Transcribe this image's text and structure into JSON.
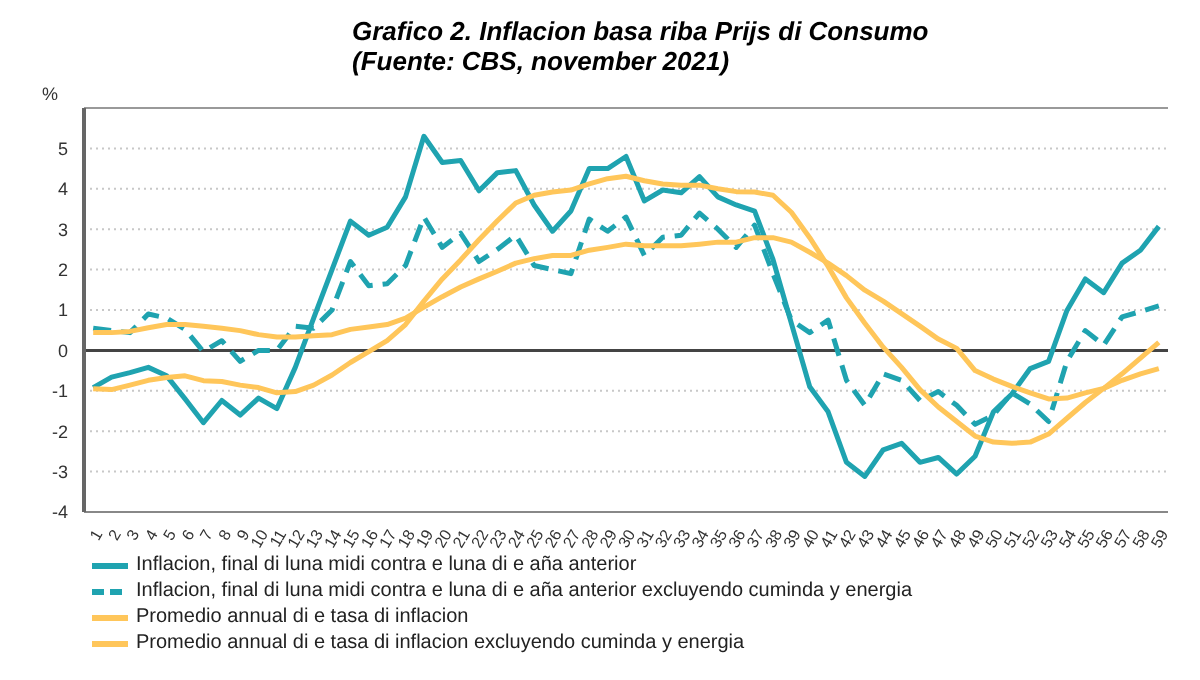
{
  "chart_data": {
    "type": "line",
    "title": "Grafico 2. Inflacion basa riba Prijs di Consumo\n(Fuente: CBS, november 2021)",
    "ylabel": "%",
    "categories": [
      "1",
      "2",
      "3",
      "4",
      "5",
      "6",
      "7",
      "8",
      "9",
      "10",
      "11",
      "12",
      "13",
      "14",
      "15",
      "16",
      "17",
      "18",
      "19",
      "20",
      "21",
      "22",
      "23",
      "24",
      "25",
      "26",
      "27",
      "28",
      "29",
      "30",
      "31",
      "32",
      "33",
      "34",
      "35",
      "36",
      "37",
      "38",
      "39",
      "40",
      "41",
      "42",
      "43",
      "44",
      "45",
      "46",
      "47",
      "48",
      "49",
      "50",
      "51",
      "52",
      "53",
      "54",
      "55",
      "56",
      "57",
      "58",
      "59"
    ],
    "series": [
      {
        "name": "Inflacion, final di luna midi contra e luna di e aña anterior",
        "color": "#1fa3b0",
        "line_style": "solid",
        "values": [
          -0.92,
          -0.66,
          -0.55,
          -0.42,
          -0.63,
          -1.2,
          -1.79,
          -1.24,
          -1.6,
          -1.18,
          -1.44,
          -0.42,
          0.8,
          2.0,
          3.2,
          2.85,
          3.05,
          3.8,
          5.3,
          4.65,
          4.7,
          3.95,
          4.4,
          4.45,
          3.6,
          2.95,
          3.45,
          4.5,
          4.5,
          4.8,
          3.7,
          3.97,
          3.9,
          4.3,
          3.8,
          3.6,
          3.45,
          2.25,
          0.67,
          -0.9,
          -1.52,
          -2.77,
          -3.12,
          -2.46,
          -2.3,
          -2.77,
          -2.65,
          -3.06,
          -2.62,
          -1.52,
          -1.08,
          -0.45,
          -0.27,
          0.99,
          1.77,
          1.43,
          2.16,
          2.48,
          3.07
        ]
      },
      {
        "name": "Inflacion, final di luna midi contra e luna di e aña anterior excluyendo cuminda y energia",
        "color": "#1fa3b0",
        "line_style": "dashed",
        "values": [
          0.55,
          0.49,
          0.44,
          0.9,
          0.8,
          0.52,
          -0.03,
          0.24,
          -0.27,
          0,
          0,
          0.6,
          0.55,
          1.0,
          2.2,
          1.6,
          1.65,
          2.1,
          3.3,
          2.55,
          2.9,
          2.2,
          2.5,
          2.85,
          2.1,
          2.0,
          1.9,
          3.25,
          2.95,
          3.3,
          2.35,
          2.8,
          2.85,
          3.4,
          3.0,
          2.55,
          3.1,
          1.9,
          0.75,
          0.44,
          0.75,
          -0.74,
          -1.36,
          -0.58,
          -0.74,
          -1.24,
          -1.02,
          -1.36,
          -1.83,
          -1.6,
          -1.05,
          -1.33,
          -1.76,
          -0.27,
          0.49,
          0.13,
          0.83,
          0.96,
          1.1
        ]
      },
      {
        "name": "Promedio annual di e tasa di inflacion",
        "color": "#ffc65a",
        "line_style": "solid",
        "values": [
          -0.95,
          -0.97,
          -0.86,
          -0.74,
          -0.67,
          -0.63,
          -0.75,
          -0.77,
          -0.86,
          -0.92,
          -1.05,
          -1.02,
          -0.86,
          -0.61,
          -0.3,
          -0.03,
          0.24,
          0.64,
          1.22,
          1.77,
          2.24,
          2.74,
          3.21,
          3.65,
          3.84,
          3.92,
          3.97,
          4.12,
          4.25,
          4.31,
          4.2,
          4.12,
          4.09,
          4.09,
          4.0,
          3.93,
          3.92,
          3.84,
          3.42,
          2.79,
          2.08,
          1.3,
          0.67,
          0.08,
          -0.42,
          -0.97,
          -1.4,
          -1.76,
          -2.12,
          -2.27,
          -2.3,
          -2.27,
          -2.07,
          -1.68,
          -1.29,
          -0.94,
          -0.58,
          -0.19,
          0.2
        ]
      },
      {
        "name": "Promedio annual di e tasa di inflacion excluyendo cuminda y energia",
        "color": "#ffc65a",
        "line_style": "solid",
        "values": [
          0.44,
          0.44,
          0.47,
          0.56,
          0.64,
          0.64,
          0.6,
          0.55,
          0.49,
          0.39,
          0.33,
          0.33,
          0.36,
          0.39,
          0.52,
          0.58,
          0.64,
          0.8,
          1.07,
          1.33,
          1.57,
          1.77,
          1.96,
          2.16,
          2.27,
          2.35,
          2.35,
          2.48,
          2.55,
          2.63,
          2.59,
          2.59,
          2.59,
          2.63,
          2.68,
          2.68,
          2.79,
          2.79,
          2.68,
          2.43,
          2.16,
          1.85,
          1.49,
          1.22,
          0.91,
          0.6,
          0.28,
          0.05,
          -0.5,
          -0.71,
          -0.89,
          -1.05,
          -1.2,
          -1.18,
          -1.05,
          -0.94,
          -0.74,
          -0.58,
          -0.45
        ]
      }
    ],
    "ylim": [
      -4,
      6
    ],
    "yticks": [
      -4,
      -3,
      -2,
      -1,
      0,
      1,
      2,
      3,
      4,
      5
    ],
    "grid": "y",
    "legend": "bottom",
    "marker": "none"
  }
}
